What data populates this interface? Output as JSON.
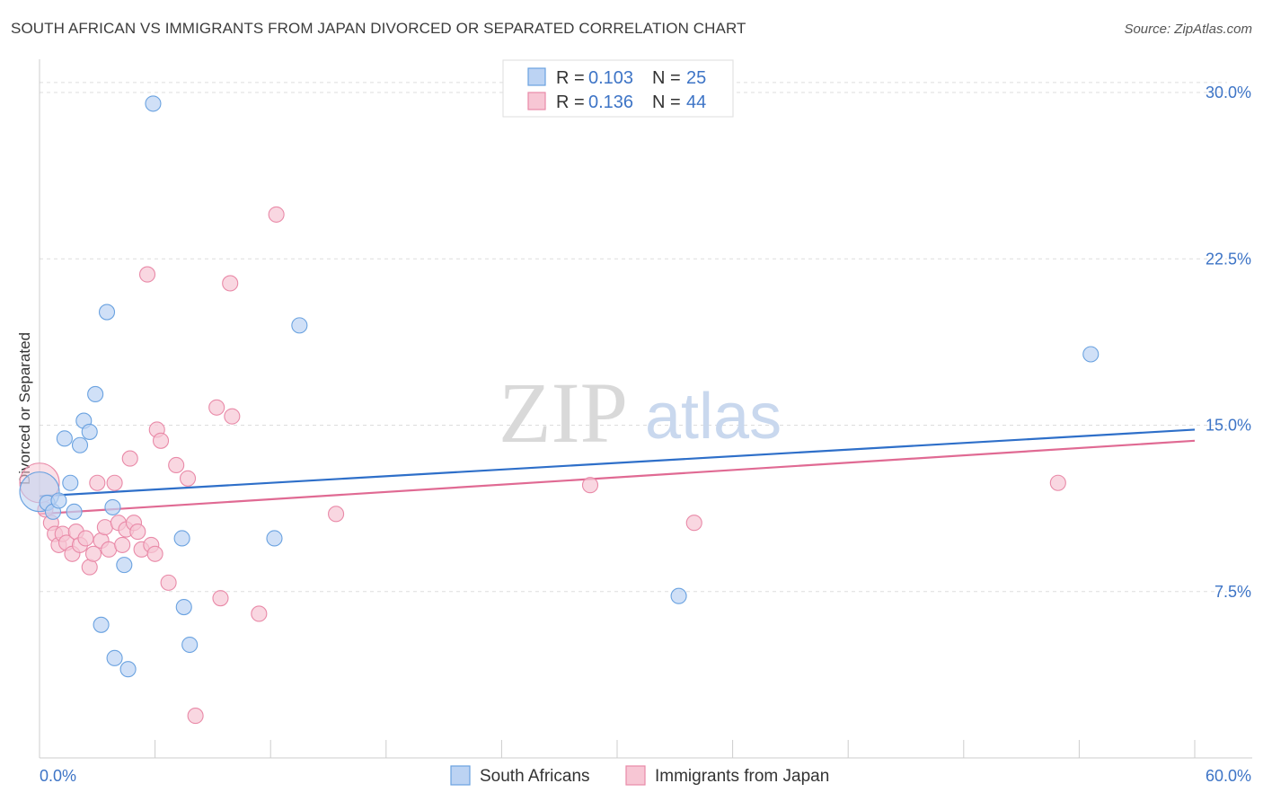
{
  "header": {
    "title": "SOUTH AFRICAN VS IMMIGRANTS FROM JAPAN DIVORCED OR SEPARATED CORRELATION CHART",
    "source": "Source: ZipAtlas.com"
  },
  "watermark": {
    "zip": "ZIP",
    "atlas": "atlas"
  },
  "colors": {
    "blue": "#6aa2e0",
    "blue_fill": "#bcd3f3",
    "blue_line": "#2e6fc9",
    "pink": "#e98aa8",
    "pink_fill": "#f7c6d4",
    "pink_line": "#e06a93",
    "tick": "#3d74c6",
    "grid": "#dddddd"
  },
  "legend": {
    "rows": [
      {
        "r_label": "R =",
        "r_value": "0.103",
        "n_label": "N =",
        "n_value": "25"
      },
      {
        "r_label": "R =",
        "r_value": "0.136",
        "n_label": "N =",
        "n_value": "44"
      }
    ]
  },
  "bottom_legend": {
    "items": [
      "South Africans",
      "Immigrants from Japan"
    ]
  },
  "chart_data": {
    "type": "scatter",
    "title": "SOUTH AFRICAN VS IMMIGRANTS FROM JAPAN DIVORCED OR SEPARATED CORRELATION CHART",
    "xlabel": "",
    "ylabel": "Divorced or Separated",
    "xlim": [
      0,
      60
    ],
    "ylim": [
      0,
      31.5
    ],
    "x_tick_labels": [
      "0.0%",
      "60.0%"
    ],
    "y_ticks": [
      7.5,
      15.0,
      22.5,
      30.0
    ],
    "y_tick_labels": [
      "7.5%",
      "15.0%",
      "22.5%",
      "30.0%"
    ],
    "grid": true,
    "legend_position": "top-center",
    "series": [
      {
        "name": "South Africans",
        "r": 0.103,
        "n": 25,
        "trend": [
          [
            0,
            11.8
          ],
          [
            60,
            14.8
          ]
        ],
        "points": [
          [
            0.0,
            12.0,
            1
          ],
          [
            0.4,
            11.5,
            0
          ],
          [
            0.7,
            11.1,
            0
          ],
          [
            1.0,
            11.6,
            0
          ],
          [
            1.3,
            14.4,
            0
          ],
          [
            1.6,
            12.4,
            0
          ],
          [
            1.8,
            11.1,
            0
          ],
          [
            2.1,
            14.1,
            0
          ],
          [
            2.3,
            15.2,
            0
          ],
          [
            2.6,
            14.7,
            0
          ],
          [
            2.9,
            16.4,
            0
          ],
          [
            3.2,
            6.0,
            0
          ],
          [
            3.5,
            20.1,
            0
          ],
          [
            3.8,
            11.3,
            0
          ],
          [
            3.9,
            4.5,
            0
          ],
          [
            4.4,
            8.7,
            0
          ],
          [
            4.6,
            4.0,
            0
          ],
          [
            5.9,
            29.5,
            0
          ],
          [
            7.4,
            9.9,
            0
          ],
          [
            7.5,
            6.8,
            0
          ],
          [
            7.8,
            5.1,
            0
          ],
          [
            12.2,
            9.9,
            0
          ],
          [
            13.5,
            19.5,
            0
          ],
          [
            33.2,
            7.3,
            0
          ],
          [
            54.6,
            18.2,
            0
          ]
        ]
      },
      {
        "name": "Immigrants from Japan",
        "r": 0.136,
        "n": 44,
        "trend": [
          [
            0,
            11.0
          ],
          [
            60,
            14.3
          ]
        ],
        "points": [
          [
            0.0,
            12.4,
            1
          ],
          [
            0.3,
            11.2,
            0
          ],
          [
            0.6,
            10.6,
            0
          ],
          [
            0.8,
            10.1,
            0
          ],
          [
            1.0,
            9.6,
            0
          ],
          [
            1.2,
            10.1,
            0
          ],
          [
            1.4,
            9.7,
            0
          ],
          [
            1.7,
            9.2,
            0
          ],
          [
            1.9,
            10.2,
            0
          ],
          [
            2.1,
            9.6,
            0
          ],
          [
            2.4,
            9.9,
            0
          ],
          [
            2.6,
            8.6,
            0
          ],
          [
            2.8,
            9.2,
            0
          ],
          [
            3.0,
            12.4,
            0
          ],
          [
            3.2,
            9.8,
            0
          ],
          [
            3.4,
            10.4,
            0
          ],
          [
            3.6,
            9.4,
            0
          ],
          [
            3.9,
            12.4,
            0
          ],
          [
            4.1,
            10.6,
            0
          ],
          [
            4.3,
            9.6,
            0
          ],
          [
            4.5,
            10.3,
            0
          ],
          [
            4.7,
            13.5,
            0
          ],
          [
            4.9,
            10.6,
            0
          ],
          [
            5.1,
            10.2,
            0
          ],
          [
            5.3,
            9.4,
            0
          ],
          [
            5.6,
            21.8,
            0
          ],
          [
            5.8,
            9.6,
            0
          ],
          [
            6.0,
            9.2,
            0
          ],
          [
            6.1,
            14.8,
            0
          ],
          [
            6.3,
            14.3,
            0
          ],
          [
            6.7,
            7.9,
            0
          ],
          [
            7.1,
            13.2,
            0
          ],
          [
            7.7,
            12.6,
            0
          ],
          [
            8.1,
            1.9,
            0
          ],
          [
            9.2,
            15.8,
            0
          ],
          [
            9.4,
            7.2,
            0
          ],
          [
            9.9,
            21.4,
            0
          ],
          [
            10.0,
            15.4,
            0
          ],
          [
            11.4,
            6.5,
            0
          ],
          [
            12.3,
            24.5,
            0
          ],
          [
            15.4,
            11.0,
            0
          ],
          [
            28.6,
            12.3,
            0
          ],
          [
            34.0,
            10.6,
            0
          ],
          [
            52.9,
            12.4,
            0
          ]
        ]
      }
    ]
  }
}
